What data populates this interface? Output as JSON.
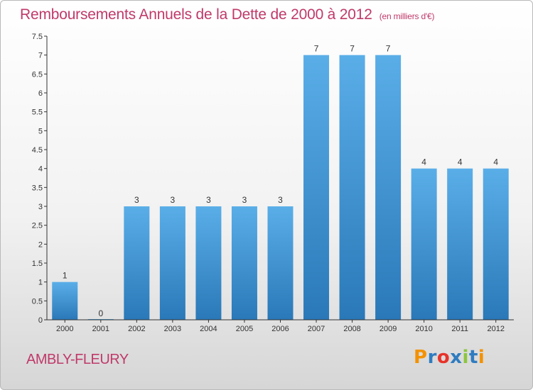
{
  "title": "Remboursements Annuels de la Dette de 2000 à 2012",
  "unit_label": "(en milliers d'€)",
  "location": "AMBLY-FLEURY",
  "brand": {
    "letters": [
      "P",
      "r",
      "o",
      "x",
      "i",
      "t",
      "i"
    ],
    "colors": [
      "#f39200",
      "#2f7cc0",
      "#e8332a",
      "#2f7cc0",
      "#8cc63f",
      "#2f7cc0",
      "#f39200"
    ]
  },
  "colors": {
    "title": "#c0396a",
    "bar_light": "#5aaee8",
    "bar_dark": "#2a78b8",
    "axis": "#333333",
    "label": "#333333"
  },
  "chart_data": {
    "type": "bar",
    "categories": [
      "2000",
      "2001",
      "2002",
      "2003",
      "2004",
      "2005",
      "2006",
      "2007",
      "2008",
      "2009",
      "2010",
      "2011",
      "2012"
    ],
    "values": [
      1,
      0,
      3,
      3,
      3,
      3,
      3,
      7,
      7,
      7,
      4,
      4,
      4
    ],
    "data_labels": [
      "1",
      "0",
      "3",
      "3",
      "3",
      "3",
      "3",
      "7",
      "7",
      "7",
      "4",
      "4",
      "4"
    ],
    "ylim": [
      0,
      7.5
    ],
    "yticks": [
      "0",
      "0.5",
      "1",
      "1.5",
      "2",
      "2.5",
      "3",
      "3.5",
      "4",
      "4.5",
      "5",
      "5.5",
      "6",
      "6.5",
      "7",
      "7.5"
    ],
    "ytick_values": [
      0,
      0.5,
      1,
      1.5,
      2,
      2.5,
      3,
      3.5,
      4,
      4.5,
      5,
      5.5,
      6,
      6.5,
      7,
      7.5
    ],
    "grid": false,
    "legend": "none",
    "xlabel": "",
    "ylabel": ""
  }
}
